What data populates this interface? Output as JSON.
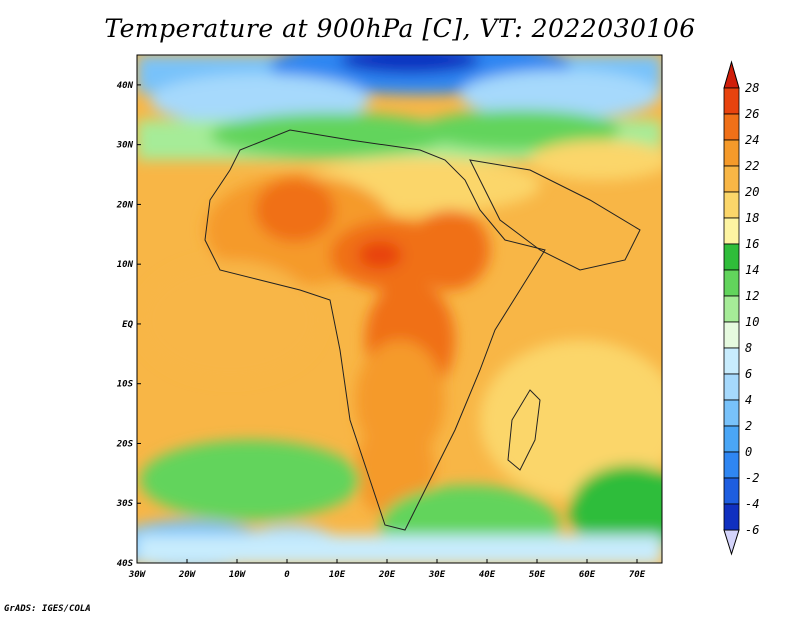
{
  "title": "Temperature at 900hPa [C], VT: 2022030106",
  "credit": "GrADS: IGES/COLA",
  "map": {
    "region": "Africa",
    "projection": "lat-lon",
    "lon_range": [
      -30,
      75
    ],
    "lat_range": [
      -40,
      45
    ],
    "lon_ticks": [
      {
        "value": -30,
        "label": "30W"
      },
      {
        "value": -20,
        "label": "20W"
      },
      {
        "value": -10,
        "label": "10W"
      },
      {
        "value": 0,
        "label": "0"
      },
      {
        "value": 10,
        "label": "10E"
      },
      {
        "value": 20,
        "label": "20E"
      },
      {
        "value": 30,
        "label": "30E"
      },
      {
        "value": 40,
        "label": "40E"
      },
      {
        "value": 50,
        "label": "50E"
      },
      {
        "value": 60,
        "label": "60E"
      },
      {
        "value": 70,
        "label": "70E"
      }
    ],
    "lat_ticks": [
      {
        "value": 40,
        "label": "40N"
      },
      {
        "value": 30,
        "label": "30N"
      },
      {
        "value": 20,
        "label": "20N"
      },
      {
        "value": 10,
        "label": "10N"
      },
      {
        "value": 0,
        "label": "EQ"
      },
      {
        "value": -10,
        "label": "10S"
      },
      {
        "value": -20,
        "label": "20S"
      },
      {
        "value": -30,
        "label": "30S"
      },
      {
        "value": -40,
        "label": "40S"
      }
    ]
  },
  "colorbar": {
    "levels": [
      {
        "value": -6,
        "label": "-6",
        "color": "#0a0f6e"
      },
      {
        "value": -4,
        "label": "-4",
        "color": "#1030c0"
      },
      {
        "value": -2,
        "label": "-2",
        "color": "#1e5ee0"
      },
      {
        "value": 0,
        "label": "0",
        "color": "#2f86f2"
      },
      {
        "value": 2,
        "label": "2",
        "color": "#4aa6f6"
      },
      {
        "value": 4,
        "label": "4",
        "color": "#78c2fa"
      },
      {
        "value": 6,
        "label": "6",
        "color": "#a6d9fc"
      },
      {
        "value": 8,
        "label": "8",
        "color": "#c8ecfd"
      },
      {
        "value": 10,
        "label": "10",
        "color": "#e6fadf"
      },
      {
        "value": 12,
        "label": "12",
        "color": "#a6ec98"
      },
      {
        "value": 14,
        "label": "14",
        "color": "#62d45c"
      },
      {
        "value": 16,
        "label": "16",
        "color": "#2fbd3a"
      },
      {
        "value": 18,
        "label": "18",
        "color": "#fdf4a2"
      },
      {
        "value": 20,
        "label": "20",
        "color": "#fbd66a"
      },
      {
        "value": 22,
        "label": "22",
        "color": "#f8b646"
      },
      {
        "value": 24,
        "label": "24",
        "color": "#f59a2a"
      },
      {
        "value": 26,
        "label": "26",
        "color": "#f07018"
      },
      {
        "value": 28,
        "label": "28",
        "color": "#e8430e"
      }
    ],
    "under_color": "#d4d4fb",
    "over_color": "#d01e0a"
  }
}
